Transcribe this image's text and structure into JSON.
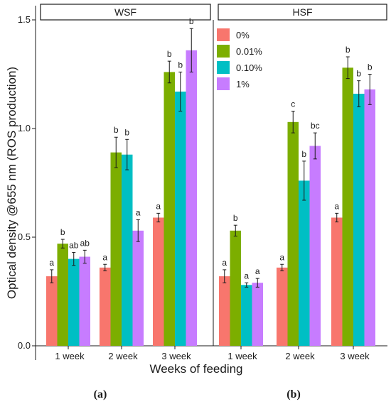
{
  "chart_data": {
    "type": "bar",
    "xlabel": "Weeks of feeding",
    "ylabel": "Optical density @655 nm (ROS production)",
    "ylim": [
      0,
      1.5
    ],
    "yticks": [
      "0.0",
      "0.5",
      "1.0",
      "1.5"
    ],
    "categories": [
      "1 week",
      "2 week",
      "3 week"
    ],
    "legend": {
      "position": "top-right of left panel",
      "entries": [
        {
          "name": "0%",
          "color": "#F8766D"
        },
        {
          "name": "0.01%",
          "color": "#7CAE00"
        },
        {
          "name": "0.10%",
          "color": "#00BFC4"
        },
        {
          "name": "1%",
          "color": "#C77CFF"
        }
      ]
    },
    "panels": [
      {
        "strip": "WSF",
        "caption": "(a)",
        "series": [
          {
            "name": "0%",
            "values": [
              0.32,
              0.36,
              0.59
            ],
            "errors": [
              0.03,
              0.015,
              0.02
            ],
            "labels": [
              "a",
              "a",
              "a"
            ]
          },
          {
            "name": "0.01%",
            "values": [
              0.47,
              0.89,
              1.26
            ],
            "errors": [
              0.02,
              0.07,
              0.05
            ],
            "labels": [
              "b",
              "b",
              "b"
            ]
          },
          {
            "name": "0.10%",
            "values": [
              0.4,
              0.88,
              1.17
            ],
            "errors": [
              0.03,
              0.07,
              0.09
            ],
            "labels": [
              "ab",
              "b",
              "b"
            ]
          },
          {
            "name": "1%",
            "values": [
              0.41,
              0.53,
              1.36
            ],
            "errors": [
              0.03,
              0.05,
              0.1
            ],
            "labels": [
              "ab",
              "a",
              "b"
            ]
          }
        ]
      },
      {
        "strip": "HSF",
        "caption": "(b)",
        "series": [
          {
            "name": "0%",
            "values": [
              0.32,
              0.36,
              0.59
            ],
            "errors": [
              0.03,
              0.015,
              0.02
            ],
            "labels": [
              "a",
              "a",
              "a"
            ]
          },
          {
            "name": "0.01%",
            "values": [
              0.53,
              1.03,
              1.28
            ],
            "errors": [
              0.025,
              0.05,
              0.05
            ],
            "labels": [
              "b",
              "c",
              "b"
            ]
          },
          {
            "name": "0.10%",
            "values": [
              0.28,
              0.76,
              1.16
            ],
            "errors": [
              0.01,
              0.09,
              0.06
            ],
            "labels": [
              "a",
              "b",
              "b"
            ]
          },
          {
            "name": "1%",
            "values": [
              0.29,
              0.92,
              1.18
            ],
            "errors": [
              0.02,
              0.06,
              0.07
            ],
            "labels": [
              "a",
              "bc",
              "b"
            ]
          }
        ]
      }
    ]
  }
}
